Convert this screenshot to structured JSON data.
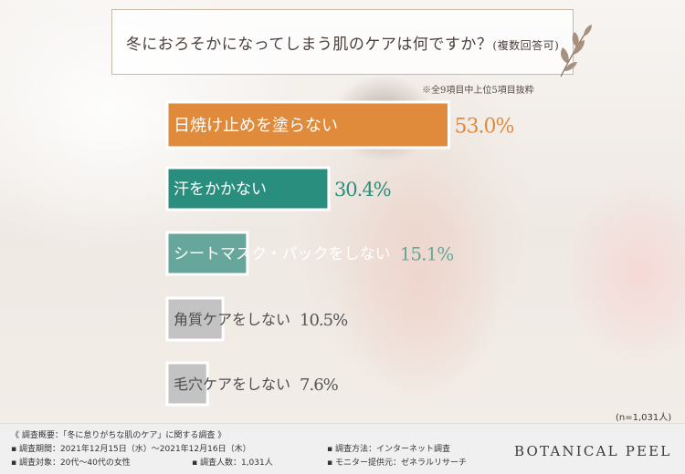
{
  "title": {
    "main": "冬におろそかになってしまう肌のケアは何ですか？",
    "sub": "(複数回答可)"
  },
  "note": "※全9項目中上位5項目抜粋",
  "chart_data": {
    "type": "bar",
    "orientation": "horizontal",
    "categories": [
      "日焼け止めを塗らない",
      "汗をかかない",
      "シートマスク・パックをしない",
      "角質ケアをしない",
      "毛穴ケアをしない"
    ],
    "values": [
      53.0,
      30.4,
      15.1,
      10.5,
      7.6
    ],
    "value_labels": [
      "53.0%",
      "30.4%",
      "15.1%",
      "10.5%",
      "7.6%"
    ],
    "colors": [
      "#e08a3c",
      "#2a8e7e",
      "#67a69a",
      "#c3c3c3",
      "#c3c3c3"
    ],
    "label_colors": [
      "#ffffff",
      "#ffffff",
      "#ffffff",
      "#4d4d4d",
      "#4d4d4d"
    ],
    "value_colors": [
      "#e08a3c",
      "#2a8e7e",
      "#67a69a",
      "#555555",
      "#555555"
    ]
  },
  "n_label": "(n=1,031人)",
  "footer": {
    "heading": "《 調査概要：「冬に怠りがちな肌のケア」に関する調査 》",
    "period": "▪ 調査期間：2021年12月15日（水）～2021年12月16日（木）",
    "method": "▪ 調査方法：インターネット調査",
    "target": "▪ 調査対象：20代～40代の女性",
    "count": "▪ 調査人数：1,031人",
    "provider": "▪ モニター提供元：ゼネラルリサーチ",
    "brand": "BOTANICAL PEEL"
  }
}
